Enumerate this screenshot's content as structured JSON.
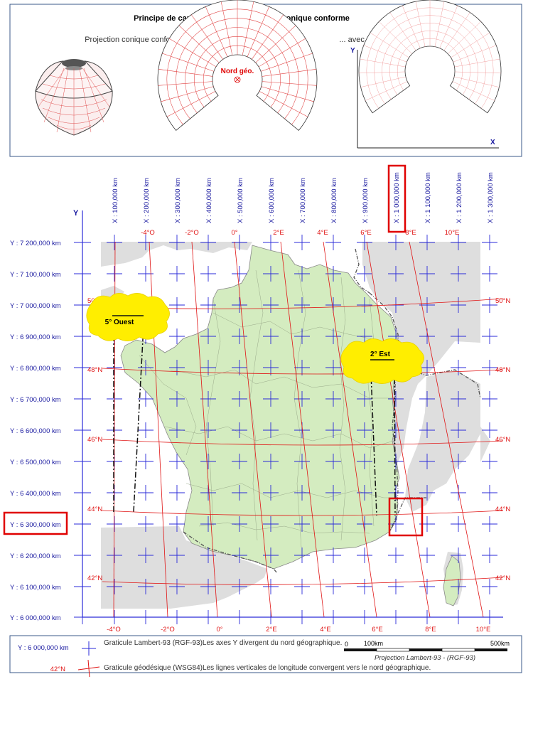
{
  "top_panel": {
    "title": "Principe de cartographie par projection conique conforme",
    "caption_left": "Projection conique conforme développée ...",
    "caption_right": "... avec quadrillage metrique.",
    "north_label": "Nord géo.",
    "axis_y": "Y",
    "axis_x": "X"
  },
  "grid": {
    "y_axis_letter": "Y",
    "x_labels": [
      "X : 100,000 km",
      "X : 200,000 km",
      "X : 300,000 km",
      "X : 400,000 km",
      "X : 500,000 km",
      "X : 600,000 km",
      "X : 700,000 km",
      "X : 800,000 km",
      "X : 900,000 km",
      "X : 1 000,000 km",
      "X : 1 100,000 km",
      "X : 1 200,000 km",
      "X : 1 300,000 km"
    ],
    "y_labels": [
      "Y : 7 200,000 km",
      "Y : 7 100,000 km",
      "Y : 7 000,000 km",
      "Y : 6 900,000 km",
      "Y : 6 800,000 km",
      "Y : 6 700,000 km",
      "Y : 6 600,000 km",
      "Y : 6 500,000 km",
      "Y : 6 400,000 km",
      "Y : 6 300,000 km",
      "Y : 6 200,000 km",
      "Y : 6 100,000 km",
      "Y : 6 000,000 km"
    ],
    "lon_labels": [
      "-4°O",
      "-2°O",
      "0°",
      "2°E",
      "4°E",
      "6°E",
      "8°E",
      "10°E"
    ],
    "lat_labels": [
      "50°N",
      "48°N",
      "46°N",
      "44°N",
      "42°N"
    ],
    "highlighted_x": "X : 1 000,000 km",
    "highlighted_y": "Y : 6 300,000 km"
  },
  "callouts": {
    "west": "5° Ouest",
    "east": "2° Est"
  },
  "legend": {
    "metric_sample": "Y : 6 000,000 km",
    "metric_text": "Graticule Lambert-93 (RGF-93)Les axes Y divergent du nord géographique.",
    "geo_sample": "42°N",
    "geo_text": "Graticule géodésique (WSG84)Les lignes verticales de longitude convergent vers le nord géographique."
  },
  "scale": {
    "label_left": "0",
    "label_mid": "100km",
    "label_right": "500km",
    "caption": "Projection Lambert-93 - (RGF-93)"
  },
  "colors": {
    "metric_grid": "#2a2ad8",
    "geo_grid": "#e01414",
    "land": "#d4ecc0",
    "neighbors": "#dedede",
    "highlight": "#e00000",
    "callout": "#ffee00"
  }
}
